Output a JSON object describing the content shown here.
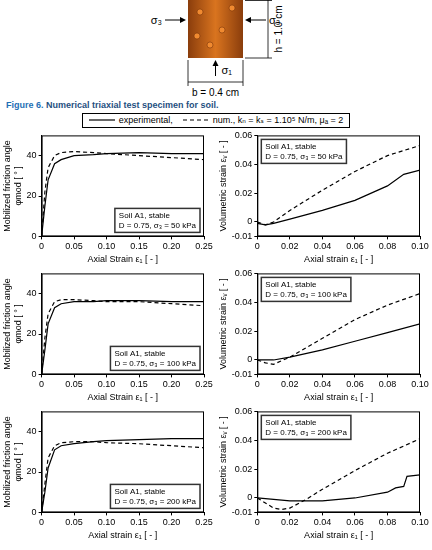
{
  "figure": {
    "specimen": {
      "left": "σ₃",
      "right": "σ₃",
      "bottom": "σ₁",
      "height": "h = 1.0 cm",
      "width": "b = 0.4 cm"
    },
    "caption": {
      "label": "Figure 6.",
      "text": "Numerical triaxial test specimen for soil."
    },
    "legend": "top"
  },
  "chart_data": [
    {
      "type": "line",
      "xlabel": "Axial Strain ε₁ [ - ]",
      "ylabel": [
        "Mobilized friction angle",
        "φmod [ ° ]"
      ],
      "annotations": [
        "Soil A1, stable",
        "D = 0.75, σ₃ = 50 kPa"
      ],
      "xlim": [
        0,
        0.25
      ],
      "xticks": [
        0,
        0.05,
        {
          "value": 0.1,
          "label": "0.10"
        },
        0.15,
        {
          "value": 0.2,
          "label": "0.20"
        },
        0.25
      ],
      "ylim": [
        0,
        50
      ],
      "yticks": [
        0,
        20,
        40
      ],
      "grid": false,
      "series": [
        {
          "name": "experimental,",
          "color": "#000000",
          "line_style": "solid",
          "x": [
            0,
            0.005,
            0.01,
            0.02,
            0.03,
            0.05,
            0.08,
            0.1,
            0.15,
            0.2,
            0.25
          ],
          "values": [
            0,
            15,
            28,
            36,
            38,
            40,
            40.5,
            41,
            41.5,
            41,
            41
          ]
        },
        {
          "name": "num., kₙ = kₛ = 1.10⁵ N/m,  μₐ = 2",
          "color": "#000000",
          "line_style": "dashed",
          "x": [
            0,
            0.005,
            0.01,
            0.02,
            0.03,
            0.05,
            0.08,
            0.1,
            0.15,
            0.2,
            0.25
          ],
          "values": [
            0,
            22,
            34,
            40,
            41.5,
            42,
            41.5,
            41,
            40,
            39,
            38
          ]
        }
      ]
    },
    {
      "type": "line",
      "xlabel": "Axial strain ε₁ [ - ]",
      "ylabel": [
        "Volumetric strain εᵥ [ - ]"
      ],
      "annotations": [
        "Soil A1, stable",
        "D = 0.75, σ₃ = 50 kPa"
      ],
      "xlim": [
        0,
        0.1
      ],
      "xticks": [
        0,
        0.02,
        0.04,
        0.06,
        0.08,
        {
          "value": 0.1,
          "label": "0.10"
        }
      ],
      "ylim": [
        -0.01,
        0.06
      ],
      "yticks": [
        -0.01,
        0,
        0.02,
        0.04,
        0.06
      ],
      "grid": false,
      "series": [
        {
          "name": "experimental,",
          "color": "#000000",
          "line_style": "solid",
          "x": [
            0,
            0.005,
            0.01,
            0.02,
            0.04,
            0.06,
            0.08,
            0.09,
            0.1
          ],
          "values": [
            -0.001,
            -0.002,
            -0.001,
            0.002,
            0.008,
            0.015,
            0.025,
            0.033,
            0.036
          ]
        },
        {
          "name": "num., kₙ = kₛ = 1.10⁵ N/m,  μₐ = 2",
          "color": "#000000",
          "line_style": "dashed",
          "x": [
            0,
            0.005,
            0.01,
            0.02,
            0.04,
            0.06,
            0.08,
            0.1
          ],
          "values": [
            0,
            -0.002,
            0,
            0.008,
            0.022,
            0.035,
            0.046,
            0.053
          ]
        }
      ]
    },
    {
      "type": "line",
      "xlabel": "Axial Strain ε₁ [ - ]",
      "ylabel": [
        "Mobilized friction angle",
        "φmod [ ° ]"
      ],
      "annotations": [
        "Soil A1, stable",
        "D = 0.75, σ₃ = 100 kPa"
      ],
      "xlim": [
        0,
        0.25
      ],
      "xticks": [
        0,
        0.05,
        {
          "value": 0.1,
          "label": "0.10"
        },
        0.15,
        {
          "value": 0.2,
          "label": "0.20"
        },
        0.25
      ],
      "ylim": [
        0,
        50
      ],
      "yticks": [
        0,
        20,
        40
      ],
      "grid": false,
      "series": [
        {
          "name": "experimental,",
          "color": "#000000",
          "line_style": "solid",
          "x": [
            0,
            0.005,
            0.01,
            0.02,
            0.03,
            0.05,
            0.08,
            0.1,
            0.15,
            0.2,
            0.25
          ],
          "values": [
            0,
            12,
            25,
            33,
            35,
            36,
            36,
            36.5,
            36.5,
            36,
            36
          ]
        },
        {
          "name": "num., kₙ = kₛ = 1.10⁵ N/m,  μₐ = 2",
          "color": "#000000",
          "line_style": "dashed",
          "x": [
            0,
            0.005,
            0.01,
            0.02,
            0.03,
            0.05,
            0.08,
            0.1,
            0.15,
            0.2,
            0.25
          ],
          "values": [
            0,
            18,
            30,
            36,
            37,
            37,
            36.5,
            36,
            36,
            35,
            34
          ]
        }
      ]
    },
    {
      "type": "line",
      "xlabel": "Axial strain ε₁ [ - ]",
      "ylabel": [
        "Volumetric strain εᵥ [ - ]"
      ],
      "annotations": [
        "Soil A1, stable",
        "D = 0.75, σ₃ = 100 kPa"
      ],
      "xlim": [
        0,
        0.1
      ],
      "xticks": [
        0,
        0.02,
        0.04,
        0.06,
        0.08,
        {
          "value": 0.1,
          "label": "0.10"
        }
      ],
      "ylim": [
        -0.01,
        0.06
      ],
      "yticks": [
        -0.01,
        0,
        0.02,
        0.04,
        0.06
      ],
      "grid": false,
      "series": [
        {
          "name": "experimental,",
          "color": "#000000",
          "line_style": "solid",
          "x": [
            0,
            0.01,
            0.02,
            0.04,
            0.06,
            0.08,
            0.1
          ],
          "values": [
            0,
            0,
            0.002,
            0.007,
            0.013,
            0.019,
            0.025
          ]
        },
        {
          "name": "num., kₙ = kₛ = 1.10⁵ N/m,  μₐ = 2",
          "color": "#000000",
          "line_style": "dashed",
          "x": [
            0,
            0.005,
            0.01,
            0.02,
            0.04,
            0.06,
            0.08,
            0.1
          ],
          "values": [
            0,
            -0.002,
            -0.003,
            0.002,
            0.015,
            0.028,
            0.038,
            0.046
          ]
        }
      ]
    },
    {
      "type": "line",
      "xlabel": "Axial strain ε₁ [ - ]",
      "ylabel": [
        "Mobilized friction angle",
        "φmod [ ° ]"
      ],
      "annotations": [
        "Soil A1, stable",
        "D = 0.75, σ₃ = 200 kPa"
      ],
      "xlim": [
        0,
        0.25
      ],
      "xticks": [
        0,
        0.05,
        {
          "value": 0.1,
          "label": "0.10"
        },
        0.15,
        {
          "value": 0.2,
          "label": "0.20"
        },
        0.25
      ],
      "ylim": [
        0,
        50
      ],
      "yticks": [
        0,
        20,
        40
      ],
      "grid": false,
      "series": [
        {
          "name": "experimental,",
          "color": "#000000",
          "line_style": "solid",
          "x": [
            0,
            0.005,
            0.01,
            0.02,
            0.03,
            0.05,
            0.08,
            0.1,
            0.15,
            0.2,
            0.25
          ],
          "values": [
            0,
            10,
            22,
            31,
            33,
            34,
            35,
            35.5,
            36,
            36.5,
            36.5
          ]
        },
        {
          "name": "num., kₙ = kₛ = 1.10⁵ N/m,  μₐ = 2",
          "color": "#000000",
          "line_style": "dashed",
          "x": [
            0,
            0.005,
            0.01,
            0.02,
            0.03,
            0.05,
            0.08,
            0.1,
            0.15,
            0.2,
            0.25
          ],
          "values": [
            0,
            14,
            27,
            33,
            34.5,
            35,
            35,
            34.5,
            34,
            33,
            32
          ]
        }
      ]
    },
    {
      "type": "line",
      "xlabel": "Axial strain ε₁ [ - ]",
      "ylabel": [
        "Volumetric strain εᵥ [ - ]"
      ],
      "annotations": [
        "Soil A1, stable",
        "D = 0.75, σ₃ = 200 kPa"
      ],
      "xlim": [
        0,
        0.1
      ],
      "xticks": [
        0,
        0.02,
        0.04,
        0.06,
        0.08,
        {
          "value": 0.1,
          "label": "0.10"
        }
      ],
      "ylim": [
        -0.01,
        0.06
      ],
      "yticks": [
        -0.01,
        0,
        0.02,
        0.04,
        0.06
      ],
      "grid": false,
      "series": [
        {
          "name": "experimental,",
          "color": "#000000",
          "line_style": "solid",
          "x": [
            0,
            0.01,
            0.02,
            0.04,
            0.06,
            0.08,
            0.085,
            0.09,
            0.092,
            0.1
          ],
          "values": [
            0,
            -0.001,
            -0.002,
            -0.002,
            0,
            0.004,
            0.007,
            0.008,
            0.015,
            0.016
          ]
        },
        {
          "name": "num., kₙ = kₛ = 1.10⁵ N/m,  μₐ = 2",
          "color": "#000000",
          "line_style": "dashed",
          "x": [
            0,
            0.01,
            0.015,
            0.02,
            0.03,
            0.04,
            0.06,
            0.08,
            0.1
          ],
          "values": [
            0,
            -0.007,
            -0.008,
            -0.007,
            -0.001,
            0.006,
            0.019,
            0.031,
            0.041
          ]
        }
      ]
    }
  ]
}
